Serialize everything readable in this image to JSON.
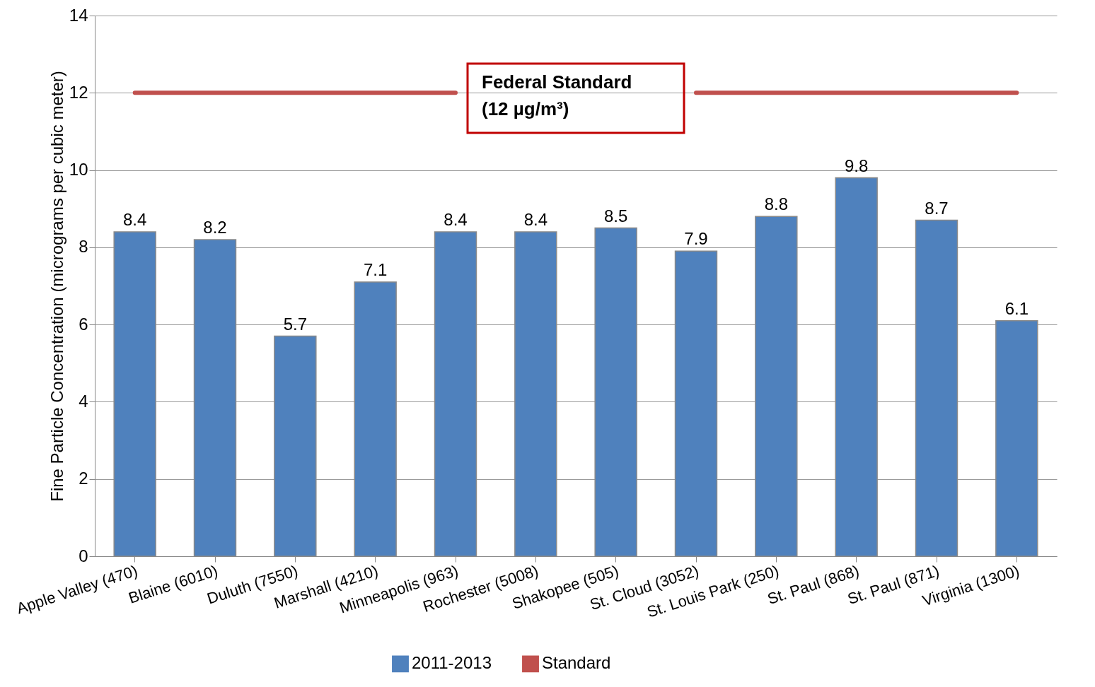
{
  "chart_data": {
    "type": "bar",
    "ylabel": "Fine Particle Concentration (micrograms per cubic meter)",
    "categories": [
      "Apple Valley (470)",
      "Blaine (6010)",
      "Duluth (7550)",
      "Marshall (4210)",
      "Minneapolis (963)",
      "Rochester (5008)",
      "Shakopee (505)",
      "St. Cloud (3052)",
      "St. Louis Park (250)",
      "St. Paul (868)",
      "St. Paul (871)",
      "Virginia (1300)"
    ],
    "series": [
      {
        "name": "2011-2013",
        "color": "#4f81bd",
        "values": [
          8.4,
          8.2,
          5.7,
          7.1,
          8.4,
          8.4,
          8.5,
          7.9,
          8.8,
          9.8,
          8.7,
          6.1
        ],
        "value_labels": [
          "8.4",
          "8.2",
          "5.7",
          "7.1",
          "8.4",
          "8.4",
          "8.5",
          "7.9",
          "8.8",
          "9.8",
          "8.7",
          "6.1"
        ]
      },
      {
        "name": "Standard",
        "type": "line",
        "color": "#c0504d",
        "values": [
          12,
          12,
          12,
          12,
          12,
          null,
          null,
          12,
          12,
          12,
          12,
          12
        ]
      }
    ],
    "ylim": [
      0,
      14
    ],
    "yticks": [
      0,
      2,
      4,
      6,
      8,
      10,
      12,
      14
    ],
    "grid": "y",
    "legend": "bottom",
    "marker": "none",
    "annotations": [
      "Federal Standard\n(12 µg/m³)"
    ]
  }
}
